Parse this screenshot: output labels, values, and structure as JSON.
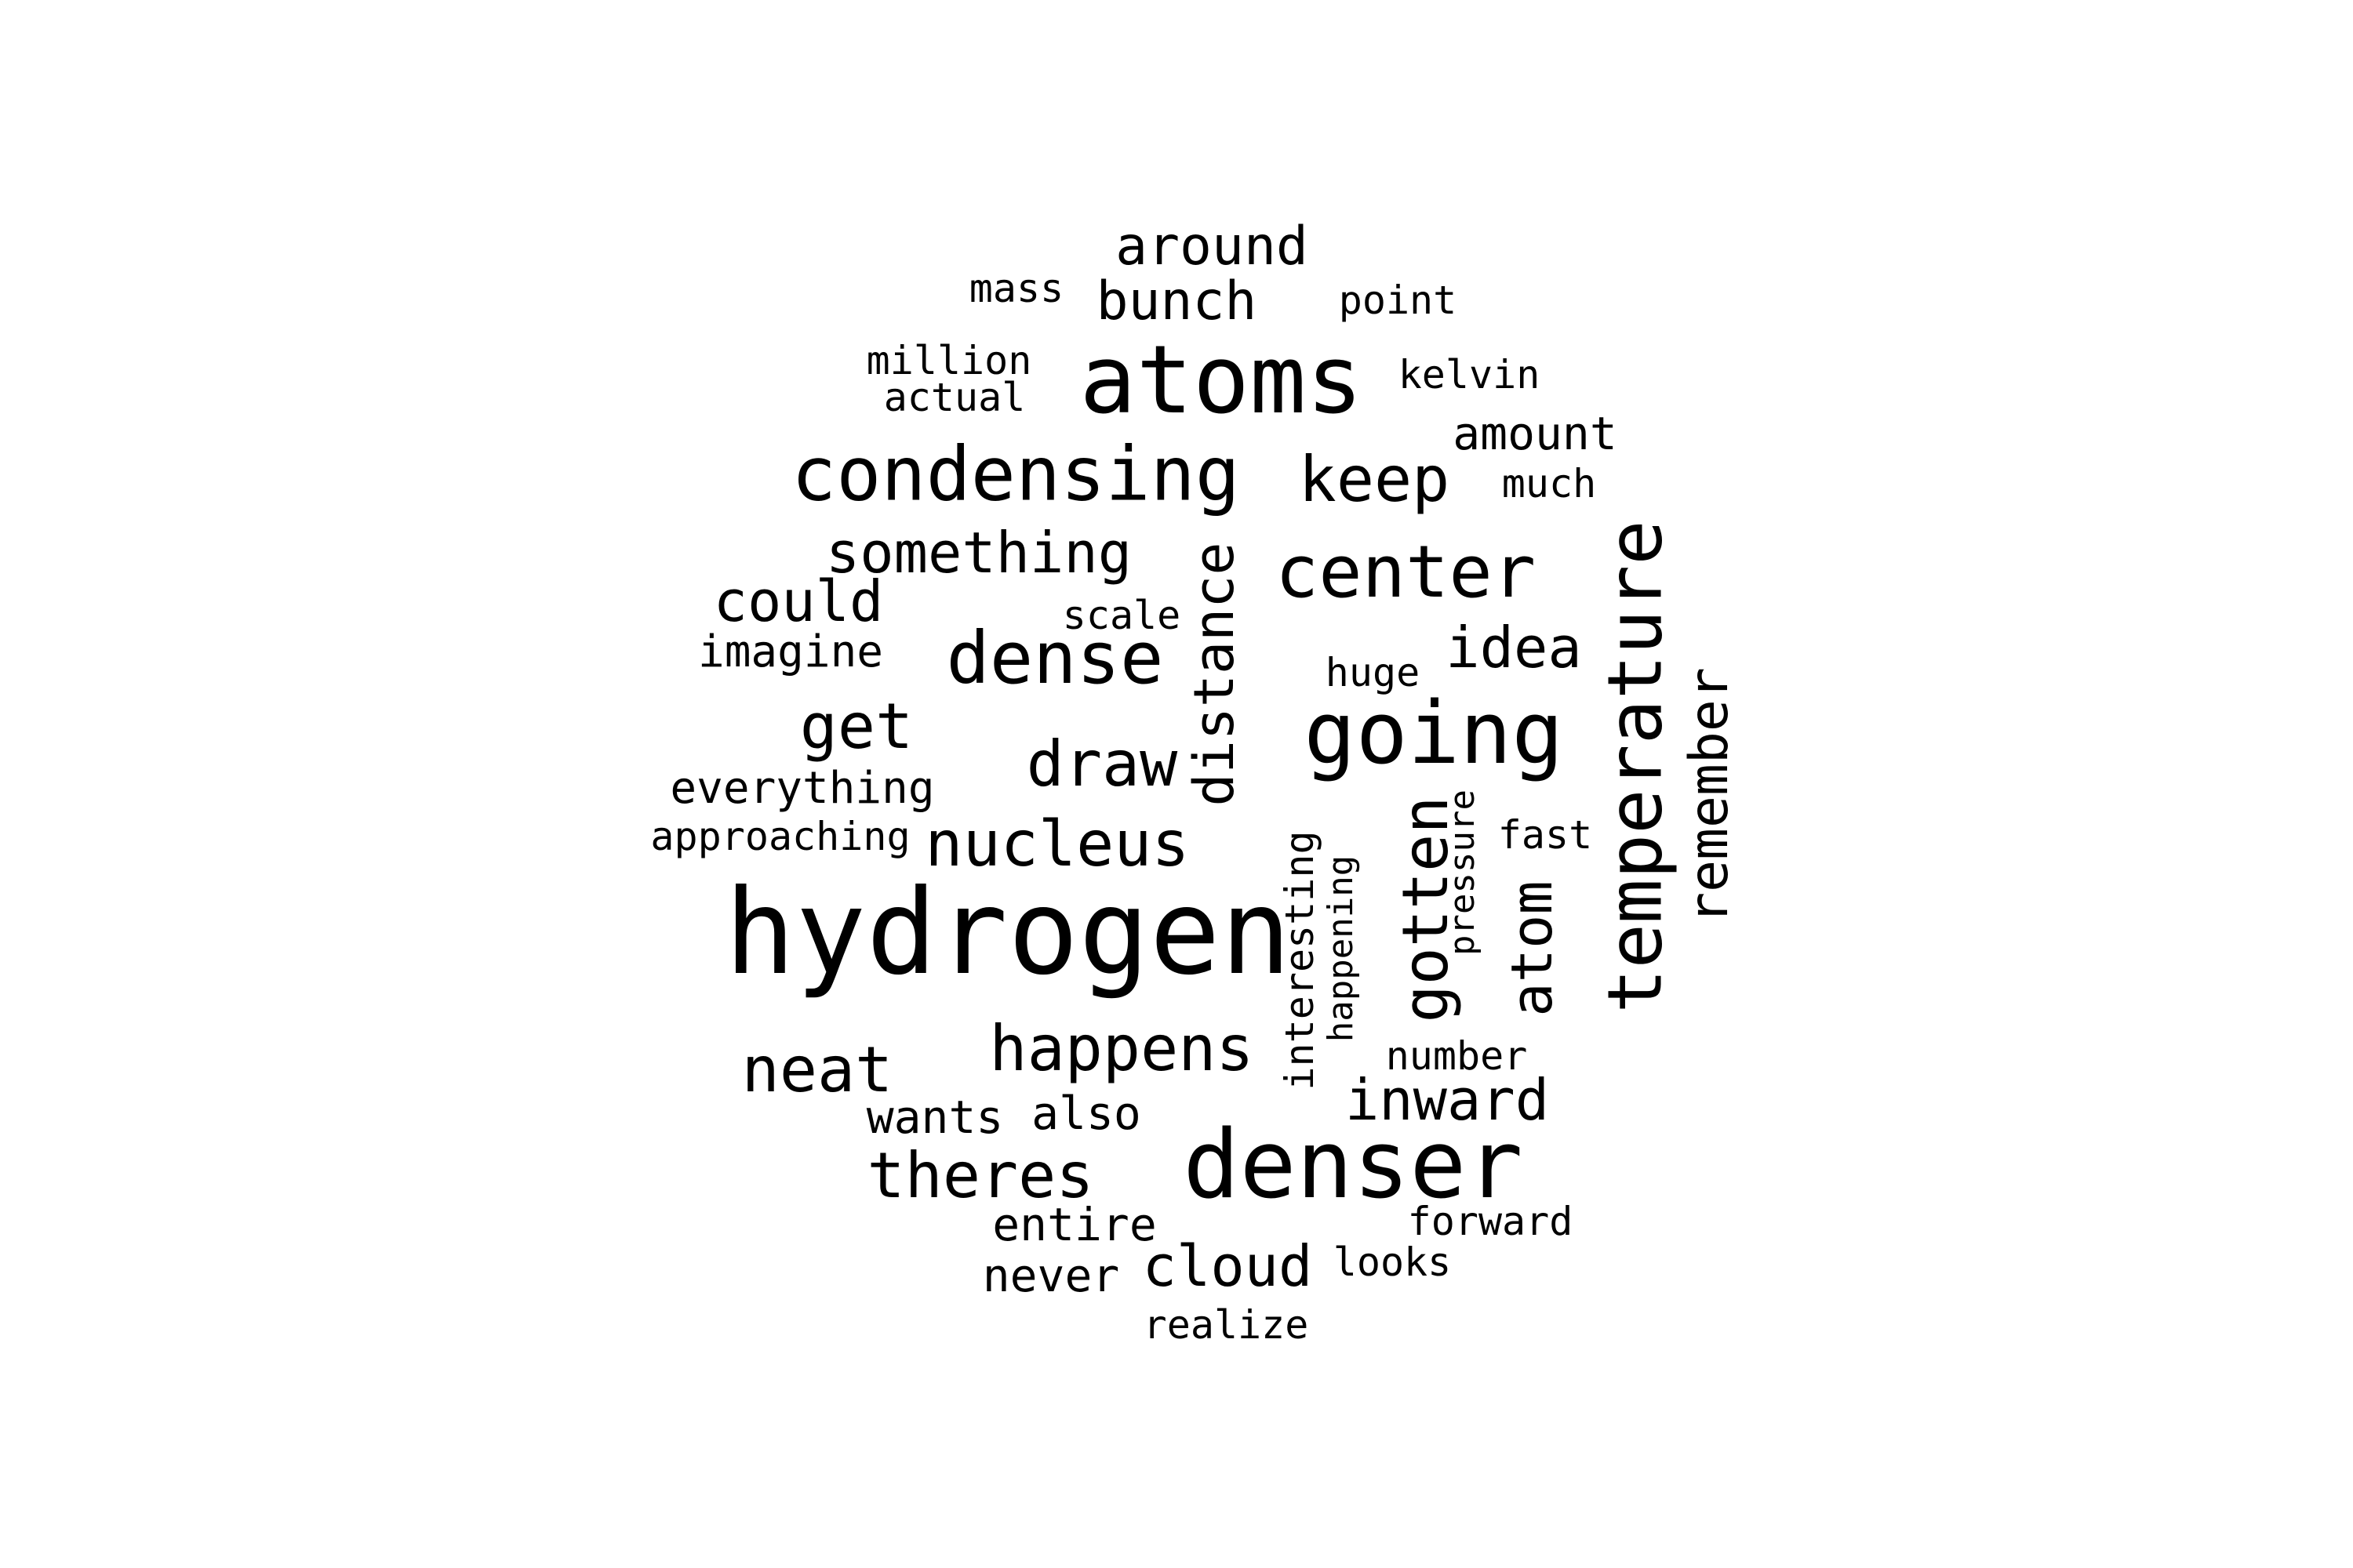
{
  "words": [
    "hydrogen",
    "atoms",
    "denser",
    "condensing",
    "temperature",
    "going",
    "dense",
    "center",
    "happens",
    "keep",
    "distance",
    "nucleus",
    "theres",
    "gotten",
    "get",
    "draw",
    "neat",
    "something",
    "could",
    "idea",
    "atom",
    "inward",
    "remember",
    "cloud",
    "around",
    "bunch",
    "interesting",
    "amount",
    "imagine",
    "everything",
    "wants",
    "also",
    "entire",
    "never",
    "happening",
    "approaching",
    "million",
    "actual",
    "mass",
    "point",
    "kelvin",
    "much",
    "scale",
    "huge",
    "fast",
    "pressure",
    "number",
    "forward",
    "looks",
    "realize"
  ],
  "colors": {
    "text": "#000000",
    "background": "#ffffff"
  }
}
